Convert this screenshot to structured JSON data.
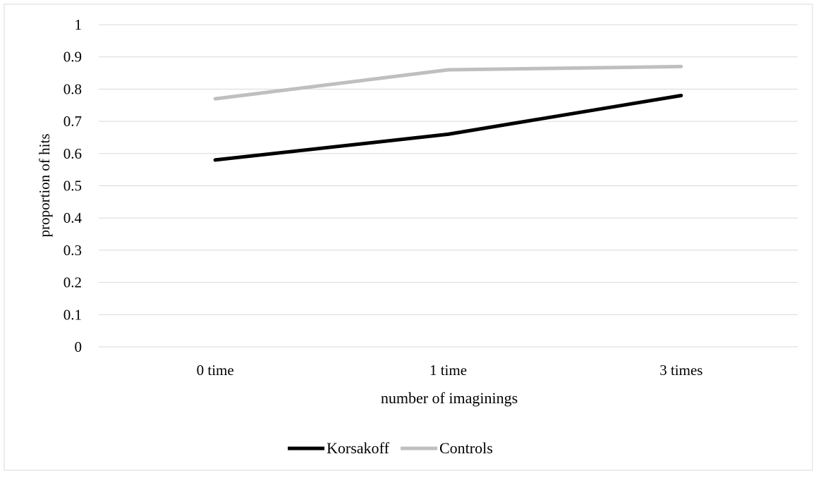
{
  "chart_data": {
    "type": "line",
    "title": "",
    "xlabel": "number of imaginings",
    "ylabel": "proportion of hits",
    "categories": [
      "0 time",
      "1 time",
      "3 times"
    ],
    "ylim": [
      0,
      1
    ],
    "yticks": [
      "0",
      "0.1",
      "0.2",
      "0.3",
      "0.4",
      "0.5",
      "0.6",
      "0.7",
      "0.8",
      "0.9",
      "1"
    ],
    "grid": true,
    "legend_position": "bottom",
    "series": [
      {
        "name": "Korsakoff",
        "color": "#000000",
        "values": [
          0.58,
          0.66,
          0.78
        ]
      },
      {
        "name": "Controls",
        "color": "#bfbfbf",
        "values": [
          0.77,
          0.86,
          0.87
        ]
      }
    ],
    "colors": {
      "gridline": "#d9d9d9",
      "frame": "#d9d9d9"
    }
  }
}
